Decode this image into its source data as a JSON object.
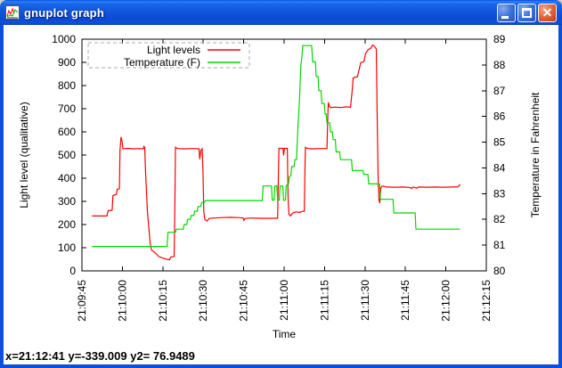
{
  "window": {
    "title": "gnuplot graph",
    "buttons": {
      "minimize": "minimize",
      "maximize": "maximize",
      "close": "close"
    }
  },
  "status_bar": {
    "text": "x=21:12:41 y=-339.009 y2= 76.9489"
  },
  "chart_data": {
    "type": "line",
    "title": "",
    "grid": false,
    "legend_position": "top-left-inside",
    "x_axis": {
      "label": "Time",
      "range_s": [
        0,
        150
      ],
      "tick_interval_s": 15,
      "tick_labels": [
        "21:09:45",
        "21:10:00",
        "21:10:15",
        "21:10:30",
        "21:10:45",
        "21:11:00",
        "21:11:15",
        "21:11:30",
        "21:11:45",
        "21:12:00",
        "21:12:15"
      ]
    },
    "y_axis": {
      "label": "Light level (qualitative)",
      "range": [
        0,
        1000
      ],
      "ticks": [
        0,
        100,
        200,
        300,
        400,
        500,
        600,
        700,
        800,
        900,
        1000
      ]
    },
    "y2_axis": {
      "label": "Temperature in Fahrenheit",
      "range": [
        80,
        89
      ],
      "ticks": [
        80,
        81,
        82,
        83,
        84,
        85,
        86,
        87,
        88,
        89
      ]
    },
    "series": [
      {
        "name": "Light levels",
        "color": "#ff0000",
        "axis": "y1",
        "points": [
          [
            3.7,
            237
          ],
          [
            9.3,
            237
          ],
          [
            9.7,
            260
          ],
          [
            11.2,
            262
          ],
          [
            11.5,
            325
          ],
          [
            12.8,
            330
          ],
          [
            13.1,
            352
          ],
          [
            13.9,
            355
          ],
          [
            14.1,
            520
          ],
          [
            14.5,
            578
          ],
          [
            14.9,
            558
          ],
          [
            15.2,
            527
          ],
          [
            17,
            529
          ],
          [
            19,
            527
          ],
          [
            21,
            528
          ],
          [
            22.8,
            527
          ],
          [
            23,
            537
          ],
          [
            23.3,
            533
          ],
          [
            23.6,
            430
          ],
          [
            24.3,
            257
          ],
          [
            25.3,
            118
          ],
          [
            25.8,
            90
          ],
          [
            27,
            80
          ],
          [
            28.5,
            62
          ],
          [
            30,
            55
          ],
          [
            31.5,
            50
          ],
          [
            32.5,
            48
          ],
          [
            33,
            60
          ],
          [
            34.2,
            62
          ],
          [
            34.5,
            300
          ],
          [
            34.7,
            533
          ],
          [
            35.5,
            528
          ],
          [
            38,
            527
          ],
          [
            41,
            528
          ],
          [
            43.4,
            527
          ],
          [
            43.7,
            482
          ],
          [
            44.1,
            520
          ],
          [
            44.6,
            527
          ],
          [
            44.9,
            430
          ],
          [
            45.2,
            257
          ],
          [
            45.6,
            222
          ],
          [
            46.4,
            215
          ],
          [
            47.2,
            226
          ],
          [
            49,
            228
          ],
          [
            52,
            230
          ],
          [
            55,
            231
          ],
          [
            58,
            230
          ],
          [
            59.8,
            228
          ],
          [
            60.1,
            218
          ],
          [
            60.5,
            226
          ],
          [
            63,
            228
          ],
          [
            66,
            227
          ],
          [
            69,
            227
          ],
          [
            72.6,
            227
          ],
          [
            72.9,
            420
          ],
          [
            73.1,
            529
          ],
          [
            74.6,
            529
          ],
          [
            74.8,
            498
          ],
          [
            75.1,
            529
          ],
          [
            76.2,
            529
          ],
          [
            76.5,
            310
          ],
          [
            76.8,
            245
          ],
          [
            77.3,
            237
          ],
          [
            78.2,
            250
          ],
          [
            79.5,
            255
          ],
          [
            80.6,
            252
          ],
          [
            81.8,
            257
          ],
          [
            82.5,
            257
          ],
          [
            82.7,
            420
          ],
          [
            82.9,
            533
          ],
          [
            83.8,
            528
          ],
          [
            86,
            527
          ],
          [
            88.5,
            528
          ],
          [
            90.9,
            528
          ],
          [
            91.2,
            660
          ],
          [
            91.4,
            727
          ],
          [
            91.8,
            710
          ],
          [
            92.3,
            705
          ],
          [
            94,
            707
          ],
          [
            96,
            705
          ],
          [
            98,
            708
          ],
          [
            99.6,
            706
          ],
          [
            100.2,
            772
          ],
          [
            100.6,
            833
          ],
          [
            102.2,
            838
          ],
          [
            102.9,
            872
          ],
          [
            103.4,
            899
          ],
          [
            104.6,
            903
          ],
          [
            105.2,
            938
          ],
          [
            106.2,
            955
          ],
          [
            107.2,
            962
          ],
          [
            107.8,
            975
          ],
          [
            108.6,
            968
          ],
          [
            109.2,
            958
          ],
          [
            109.5,
            690
          ],
          [
            109.9,
            395
          ],
          [
            110.2,
            307
          ],
          [
            110.5,
            293
          ],
          [
            110.9,
            360
          ],
          [
            111.4,
            366
          ],
          [
            113,
            362
          ],
          [
            116,
            361
          ],
          [
            119,
            362
          ],
          [
            121.8,
            360
          ],
          [
            122.2,
            355
          ],
          [
            122.8,
            362
          ],
          [
            124.3,
            357
          ],
          [
            124.8,
            362
          ],
          [
            128,
            361
          ],
          [
            131,
            362
          ],
          [
            134,
            361
          ],
          [
            137,
            362
          ],
          [
            139.5,
            363
          ],
          [
            140,
            368
          ],
          [
            140.3,
            374
          ]
        ]
      },
      {
        "name": "Temperature (F)",
        "color": "#00d800",
        "axis": "y2",
        "points": [
          [
            3.7,
            80.95
          ],
          [
            31.6,
            80.95
          ],
          [
            31.9,
            81.5
          ],
          [
            34.7,
            81.5
          ],
          [
            35,
            81.62
          ],
          [
            37.6,
            81.62
          ],
          [
            37.9,
            81.8
          ],
          [
            38.9,
            81.8
          ],
          [
            39.2,
            82.0
          ],
          [
            40.2,
            82.0
          ],
          [
            40.5,
            82.15
          ],
          [
            41.5,
            82.15
          ],
          [
            41.8,
            82.32
          ],
          [
            42.8,
            82.32
          ],
          [
            43.1,
            82.5
          ],
          [
            44.1,
            82.5
          ],
          [
            44.4,
            82.66
          ],
          [
            45.5,
            82.66
          ],
          [
            45.8,
            82.73
          ],
          [
            66.9,
            82.73
          ],
          [
            67.2,
            83.3
          ],
          [
            70.3,
            83.3
          ],
          [
            70.6,
            82.75
          ],
          [
            71.3,
            82.75
          ],
          [
            71.6,
            83.3
          ],
          [
            72.3,
            83.3
          ],
          [
            72.6,
            82.75
          ],
          [
            73.2,
            82.75
          ],
          [
            73.5,
            83.3
          ],
          [
            74.5,
            83.3
          ],
          [
            74.8,
            82.75
          ],
          [
            75.5,
            82.75
          ],
          [
            75.8,
            83.32
          ],
          [
            76.6,
            83.35
          ],
          [
            76.9,
            83.66
          ],
          [
            77.5,
            83.7
          ],
          [
            77.8,
            84.05
          ],
          [
            78.7,
            84.05
          ],
          [
            79,
            84.32
          ],
          [
            79.6,
            84.32
          ],
          [
            79.9,
            85.0
          ],
          [
            80.2,
            85.7
          ],
          [
            80.6,
            86.4
          ],
          [
            80.9,
            87.2
          ],
          [
            81.2,
            88.0
          ],
          [
            81.6,
            88.32
          ],
          [
            81.9,
            88.75
          ],
          [
            85.2,
            88.75
          ],
          [
            85.6,
            88.12
          ],
          [
            86.6,
            88.12
          ],
          [
            86.9,
            87.55
          ],
          [
            87.6,
            87.55
          ],
          [
            87.9,
            87.0
          ],
          [
            88.7,
            87.0
          ],
          [
            89,
            86.5
          ],
          [
            89.9,
            86.5
          ],
          [
            90.2,
            86.1
          ],
          [
            90.6,
            86.1
          ],
          [
            90.9,
            85.75
          ],
          [
            91.9,
            85.75
          ],
          [
            92.2,
            85.4
          ],
          [
            92.9,
            85.4
          ],
          [
            93.2,
            85.1
          ],
          [
            94,
            85.1
          ],
          [
            94.3,
            84.62
          ],
          [
            95.6,
            84.62
          ],
          [
            95.9,
            84.32
          ],
          [
            100,
            84.32
          ],
          [
            100.3,
            83.9
          ],
          [
            104.2,
            83.9
          ],
          [
            104.5,
            83.75
          ],
          [
            106.1,
            83.75
          ],
          [
            106.4,
            83.38
          ],
          [
            110.4,
            83.38
          ],
          [
            110.7,
            82.78
          ],
          [
            115.4,
            82.78
          ],
          [
            115.7,
            82.25
          ],
          [
            123.6,
            82.25
          ],
          [
            123.9,
            81.62
          ],
          [
            140.3,
            81.62
          ]
        ]
      }
    ]
  }
}
